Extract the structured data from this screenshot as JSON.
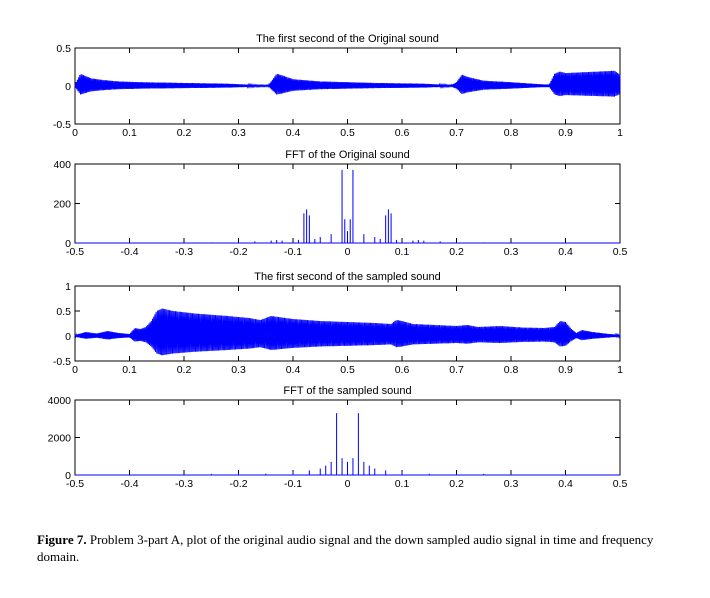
{
  "chart_data": [
    {
      "type": "line",
      "title": "The first second of the Original sound",
      "xlabel": "",
      "ylabel": "",
      "xlim": [
        0,
        1
      ],
      "ylim": [
        -0.5,
        0.5
      ],
      "xticks": [
        0,
        0.1,
        0.2,
        0.3,
        0.4,
        0.5,
        0.6,
        0.7,
        0.8,
        0.9,
        1
      ],
      "xtick_labels": [
        "0",
        "0.1",
        "0.2",
        "0.3",
        "0.4",
        "0.5",
        "0.6",
        "0.7",
        "0.8",
        "0.9",
        "1"
      ],
      "yticks": [
        -0.5,
        0,
        0.5
      ],
      "ytick_labels": [
        "-0.5",
        "0",
        "0.5"
      ],
      "color": "#0000ff",
      "series": [
        {
          "x": [
            0.0,
            0.01,
            0.02,
            0.03,
            0.05,
            0.08,
            0.12,
            0.2,
            0.28,
            0.34,
            0.355,
            0.36,
            0.37,
            0.38,
            0.4,
            0.45,
            0.55,
            0.64,
            0.69,
            0.7,
            0.71,
            0.72,
            0.75,
            0.8,
            0.86,
            0.87,
            0.88,
            0.89,
            0.9,
            0.93,
            0.96,
            0.99,
            1.0
          ],
          "y": [
            0.02,
            0.16,
            0.13,
            0.1,
            0.08,
            0.06,
            0.05,
            0.04,
            0.03,
            0.01,
            0.01,
            0.06,
            0.16,
            0.14,
            0.09,
            0.06,
            0.04,
            0.03,
            0.01,
            0.05,
            0.15,
            0.12,
            0.07,
            0.05,
            0.02,
            0.02,
            0.16,
            0.19,
            0.17,
            0.18,
            0.19,
            0.2,
            0.15
          ]
        }
      ]
    },
    {
      "type": "line",
      "title": "FFT of the Original sound",
      "xlabel": "",
      "ylabel": "",
      "xlim": [
        -0.5,
        0.5
      ],
      "ylim": [
        0,
        400
      ],
      "xticks": [
        -0.5,
        -0.4,
        -0.3,
        -0.2,
        -0.1,
        0,
        0.1,
        0.2,
        0.3,
        0.4,
        0.5
      ],
      "xtick_labels": [
        "-0.5",
        "-0.4",
        "-0.3",
        "-0.2",
        "-0.1",
        "0",
        "0.1",
        "0.2",
        "0.3",
        "0.4",
        "0.5"
      ],
      "yticks": [
        0,
        200,
        400
      ],
      "ytick_labels": [
        "0",
        "200",
        "400"
      ],
      "color": "#0000ff",
      "series": [
        {
          "x": [
            -0.5,
            -0.4,
            -0.3,
            -0.25,
            -0.2,
            -0.17,
            -0.14,
            -0.13,
            -0.12,
            -0.09,
            -0.08,
            -0.075,
            -0.07,
            -0.06,
            -0.05,
            -0.03,
            -0.01,
            -0.005,
            0,
            0.005,
            0.01,
            0.03,
            0.05,
            0.06,
            0.07,
            0.075,
            0.08,
            0.09,
            0.12,
            0.13,
            0.14,
            0.17,
            0.2,
            0.25,
            0.3,
            0.4,
            0.5
          ],
          "y": [
            0,
            0,
            2,
            3,
            6,
            8,
            12,
            15,
            12,
            16,
            150,
            170,
            140,
            20,
            30,
            45,
            370,
            120,
            60,
            120,
            370,
            45,
            30,
            20,
            140,
            170,
            150,
            16,
            12,
            15,
            12,
            8,
            6,
            3,
            2,
            0,
            0
          ]
        }
      ]
    },
    {
      "type": "line",
      "title": "The first second of the sampled sound",
      "xlabel": "",
      "ylabel": "",
      "xlim": [
        0,
        1
      ],
      "ylim": [
        -0.5,
        1
      ],
      "xticks": [
        0,
        0.1,
        0.2,
        0.3,
        0.4,
        0.5,
        0.6,
        0.7,
        0.8,
        0.9,
        1
      ],
      "xtick_labels": [
        "0",
        "0.1",
        "0.2",
        "0.3",
        "0.4",
        "0.5",
        "0.6",
        "0.7",
        "0.8",
        "0.9",
        "1"
      ],
      "yticks": [
        -0.5,
        0,
        0.5,
        1
      ],
      "ytick_labels": [
        "-0.5",
        "0",
        "0.5",
        "1"
      ],
      "color": "#0000ff",
      "series": [
        {
          "x": [
            0.0,
            0.02,
            0.04,
            0.06,
            0.08,
            0.1,
            0.11,
            0.12,
            0.13,
            0.14,
            0.15,
            0.16,
            0.18,
            0.22,
            0.28,
            0.32,
            0.34,
            0.36,
            0.4,
            0.45,
            0.5,
            0.55,
            0.58,
            0.59,
            0.6,
            0.62,
            0.66,
            0.7,
            0.72,
            0.74,
            0.78,
            0.82,
            0.86,
            0.88,
            0.89,
            0.9,
            0.91,
            0.92,
            0.93,
            0.95,
            0.98,
            1.0
          ],
          "y": [
            0.02,
            0.08,
            0.05,
            0.1,
            0.06,
            0.04,
            0.16,
            0.14,
            0.18,
            0.3,
            0.5,
            0.55,
            0.5,
            0.45,
            0.4,
            0.36,
            0.32,
            0.4,
            0.34,
            0.3,
            0.28,
            0.26,
            0.24,
            0.32,
            0.3,
            0.24,
            0.22,
            0.2,
            0.22,
            0.18,
            0.2,
            0.17,
            0.16,
            0.18,
            0.3,
            0.28,
            0.15,
            0.06,
            0.12,
            0.08,
            0.04,
            0.02
          ]
        }
      ]
    },
    {
      "type": "line",
      "title": "FFT of the sampled sound",
      "xlabel": "",
      "ylabel": "",
      "xlim": [
        -0.5,
        0.5
      ],
      "ylim": [
        0,
        4000
      ],
      "xticks": [
        -0.5,
        -0.4,
        -0.3,
        -0.2,
        -0.1,
        0,
        0.1,
        0.2,
        0.3,
        0.4,
        0.5
      ],
      "xtick_labels": [
        "-0.5",
        "-0.4",
        "-0.3",
        "-0.2",
        "-0.1",
        "0",
        "0.1",
        "0.2",
        "0.3",
        "0.4",
        "0.5"
      ],
      "yticks": [
        0,
        2000,
        4000
      ],
      "ytick_labels": [
        "0",
        "2000",
        "4000"
      ],
      "color": "#0000ff",
      "series": [
        {
          "x": [
            -0.5,
            -0.45,
            -0.4,
            -0.35,
            -0.3,
            -0.25,
            -0.2,
            -0.15,
            -0.1,
            -0.07,
            -0.05,
            -0.04,
            -0.03,
            -0.02,
            -0.01,
            0,
            0.01,
            0.02,
            0.03,
            0.04,
            0.05,
            0.07,
            0.1,
            0.15,
            0.2,
            0.25,
            0.3,
            0.35,
            0.4,
            0.45,
            0.5
          ],
          "y": [
            0,
            20,
            40,
            30,
            50,
            60,
            90,
            70,
            150,
            250,
            350,
            500,
            700,
            3300,
            900,
            700,
            900,
            3300,
            700,
            500,
            350,
            250,
            150,
            70,
            90,
            60,
            50,
            30,
            40,
            20,
            0
          ]
        }
      ]
    }
  ],
  "caption": {
    "label": "Figure 7.",
    "text": " Problem 3-part A, plot of the original audio signal and the down sampled audio signal in time and frequency domain."
  }
}
